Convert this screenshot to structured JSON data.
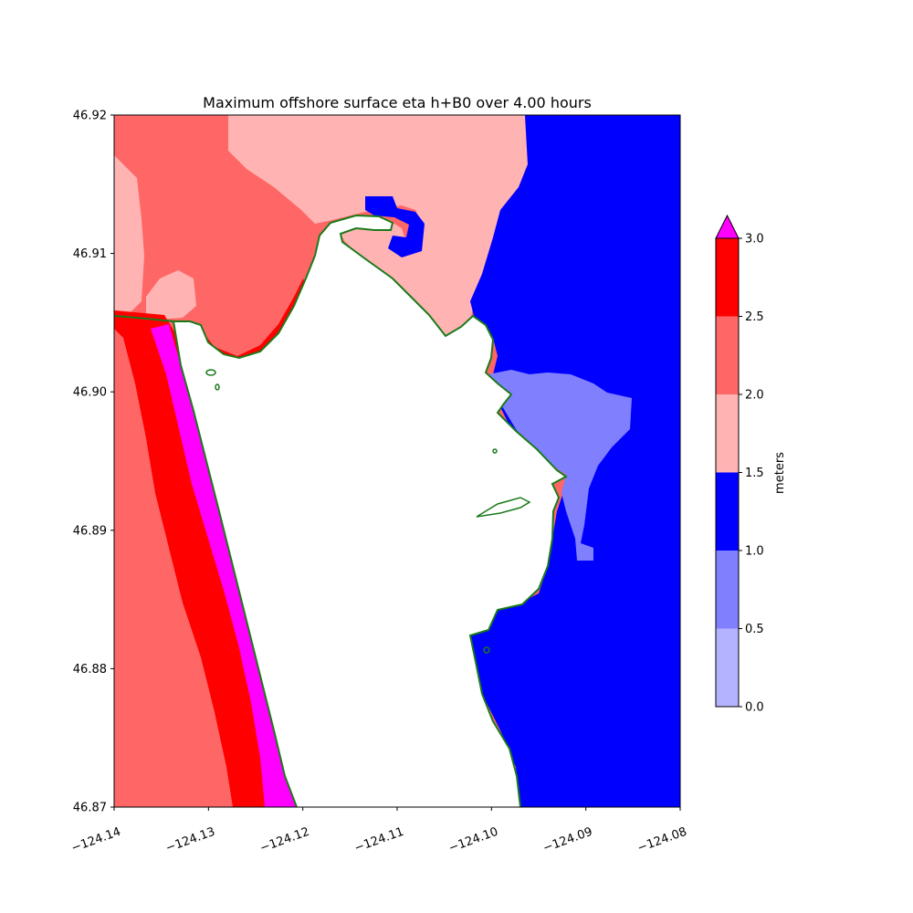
{
  "title": "Maximum offshore surface eta h+B0 over 4.00 hours",
  "map": {
    "xlim": [
      -124.14,
      -124.08
    ],
    "ylim": [
      46.87,
      46.92
    ],
    "x_ticks": [
      -124.14,
      -124.13,
      -124.12,
      -124.11,
      -124.1,
      -124.09,
      -124.08
    ],
    "x_tick_labels": [
      "−124.14",
      "−124.13",
      "−124.12",
      "−124.11",
      "−124.10",
      "−124.09",
      "−124.08"
    ],
    "y_ticks": [
      46.87,
      46.88,
      46.89,
      46.9,
      46.91,
      46.92
    ],
    "y_tick_labels": [
      "46.87",
      "46.88",
      "46.89",
      "46.90",
      "46.91",
      "46.92"
    ],
    "shoreline_color": "#1a7a1a",
    "land_color": "#ffffff"
  },
  "colorbar": {
    "label": "meters",
    "levels": [
      0.0,
      0.5,
      1.0,
      1.5,
      2.0,
      2.5,
      3.0
    ],
    "level_labels": [
      "0.0",
      "0.5",
      "1.0",
      "1.5",
      "2.0",
      "2.5",
      "3.0"
    ],
    "colors": [
      "#b3b3ff",
      "#8080ff",
      "#0000ff",
      "#ffb3b3",
      "#ff6666",
      "#ff0000"
    ],
    "extend_max_color": "#ff00ff"
  }
}
